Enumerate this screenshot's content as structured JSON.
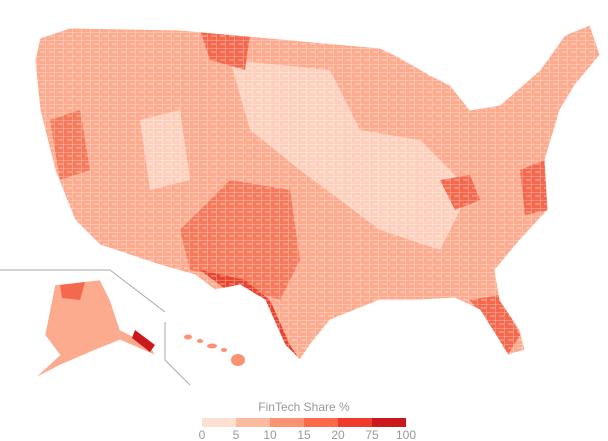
{
  "legend": {
    "title": "FinTech Share %",
    "breaks": [
      0,
      5,
      10,
      15,
      20,
      75,
      100
    ],
    "colors": [
      "#fee0d2",
      "#fcbba1",
      "#fc9272",
      "#fb6a4a",
      "#ef3b2c",
      "#cb181d"
    ]
  }
}
